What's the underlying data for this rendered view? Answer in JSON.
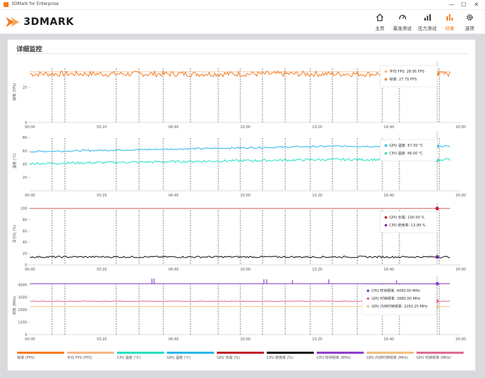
{
  "window": {
    "title": "3DMark for Enterprise",
    "minimize": "—",
    "maximize": "☐",
    "close": "✕"
  },
  "brand": {
    "name": "3DMARK",
    "accent": "#f47b20"
  },
  "nav": [
    {
      "label": "主页",
      "icon": "home-icon",
      "active": false
    },
    {
      "label": "基准测试",
      "icon": "gauge-icon",
      "active": false
    },
    {
      "label": "压力测试",
      "icon": "bar-chart-icon",
      "active": false
    },
    {
      "label": "结果",
      "icon": "results-icon",
      "active": true
    },
    {
      "label": "选项",
      "icon": "gear-icon",
      "active": false
    }
  ],
  "panel": {
    "title": "详细监控"
  },
  "time_ticks": [
    "00:00",
    "03:20",
    "06:40",
    "10:00",
    "13:20",
    "16:40",
    "20:00"
  ],
  "chart_data": [
    {
      "type": "line",
      "ylabel": "帧率 (FPS)",
      "ylim": [
        0,
        35
      ],
      "yticks": [
        0,
        20
      ],
      "xlim_seconds": [
        0,
        1200
      ],
      "series": [
        {
          "name": "平均 FPS",
          "color": "#f5b78a",
          "values": [
            28.95,
            28.95
          ],
          "kind": "flat"
        },
        {
          "name": "帧率",
          "color": "#f47b20",
          "base": 27.75,
          "noise": 1.6
        }
      ],
      "tooltip": [
        {
          "label": "平均 FPS: 28.95 FPS",
          "color": "#f5b78a",
          "value": 28.95
        },
        {
          "label": "帧率: 27.75 FPS",
          "color": "#f47b20",
          "value": 27.75
        }
      ]
    },
    {
      "type": "line",
      "ylabel": "温度 (°C)",
      "ylim": [
        0,
        90
      ],
      "yticks": [
        20,
        40,
        60,
        80
      ],
      "xlim_seconds": [
        0,
        1200
      ],
      "series": [
        {
          "name": "GPU 温度",
          "color": "#2bb6e8",
          "start": 59,
          "end": 67,
          "noise": 1.2
        },
        {
          "name": "CPU 温度",
          "color": "#25e0c0",
          "start": 41,
          "end": 47,
          "noise": 1.8
        }
      ],
      "tooltip": [
        {
          "label": "GPU 温度: 67.00 °C",
          "color": "#2bb6e8",
          "value": 67
        },
        {
          "label": "CPU 温度: 46.00 °C",
          "color": "#25e0c0",
          "value": 46
        }
      ]
    },
    {
      "type": "line",
      "ylabel": "百分比 (%)",
      "ylim": [
        0,
        110
      ],
      "yticks": [
        0,
        20,
        40,
        60,
        80,
        100
      ],
      "xlim_seconds": [
        0,
        1200
      ],
      "series": [
        {
          "name": "GPU 负载",
          "color": "#c0232b",
          "values": [
            100,
            100
          ],
          "kind": "flat"
        },
        {
          "name": "CPU 使用率",
          "color": "#111111",
          "base": 14,
          "noise": 1.5
        }
      ],
      "tooltip": [
        {
          "label": "GPU 负载: 100.00 %",
          "color": "#c0232b",
          "value": 100
        },
        {
          "label": "CPU 使用率: 13.99 %",
          "color": "#7a2a9a",
          "value": 13.99
        }
      ]
    },
    {
      "type": "line",
      "ylabel": "频率 (MHz)",
      "ylim": [
        0,
        4700
      ],
      "yticks": [
        0,
        1000,
        2000,
        3000,
        4000
      ],
      "xlim_seconds": [
        0,
        1200
      ],
      "series": [
        {
          "name": "CPU 时钟频率",
          "color": "#8e3fc9",
          "base": 4090,
          "spikes": true
        },
        {
          "name": "GPU 时钟频率",
          "color": "#e06a95",
          "base": 2685,
          "noise": 25
        },
        {
          "name": "GPU 内存时钟频率",
          "color": "#f0c080",
          "values": [
            2250.25,
            2250.25
          ],
          "kind": "flat"
        }
      ],
      "tooltip": [
        {
          "label": "CPU 时钟频率: 4090.00 MHz",
          "color": "#8e3fc9",
          "value": 4090
        },
        {
          "label": "GPU 时钟频率: 2685.00 MHz",
          "color": "#e06a95",
          "value": 2685
        },
        {
          "label": "GPU 内存时钟频率: 2250.25 MHz",
          "color": "#f0c080",
          "value": 2250.25
        }
      ]
    }
  ],
  "legend": [
    {
      "label": "帧率 (FPS)",
      "color": "#f47b20"
    },
    {
      "label": "平均 FPS (FPS)",
      "color": "#f5b78a"
    },
    {
      "label": "CPU 温度 (°C)",
      "color": "#25e0c0"
    },
    {
      "label": "GPU 温度 (°C)",
      "color": "#2bb6e8"
    },
    {
      "label": "GPU 负载 (%)",
      "color": "#c0232b"
    },
    {
      "label": "CPU 使用率 (%)",
      "color": "#111111"
    },
    {
      "label": "CPU 时钟频率 (MHz)",
      "color": "#8e3fc9"
    },
    {
      "label": "GPU 内存时钟频率 (MHz)",
      "color": "#f0c080"
    },
    {
      "label": "GPU 时钟频率 (MHz)",
      "color": "#e06a95"
    }
  ]
}
